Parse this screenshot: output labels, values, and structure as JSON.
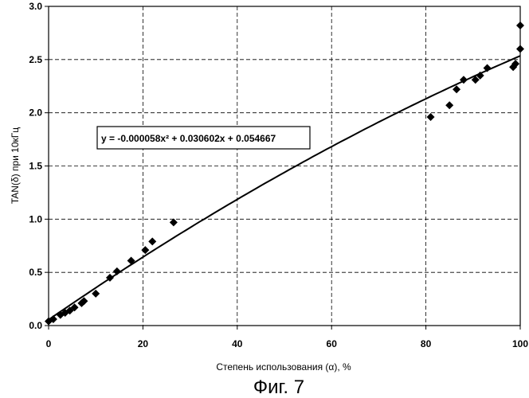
{
  "figure": {
    "caption": "Фиг. 7"
  },
  "chart_data": {
    "type": "scatter",
    "title": "",
    "xlabel": "Степень использования (α), %",
    "ylabel": "TAN(δ) при 10кГц",
    "xlim": [
      0,
      100
    ],
    "ylim": [
      0.0,
      3.0
    ],
    "x_ticks": [
      0,
      20,
      40,
      60,
      80,
      100
    ],
    "y_ticks": [
      0.0,
      0.5,
      1.0,
      1.5,
      2.0,
      2.5,
      3.0
    ],
    "x_tick_labels": [
      "0",
      "20",
      "40",
      "60",
      "80",
      "100"
    ],
    "y_tick_labels": [
      "0.0",
      "0.5",
      "1.0",
      "1.5",
      "2.0",
      "2.5",
      "3.0"
    ],
    "grid": true,
    "grid_style": "dashed",
    "marker": "diamond",
    "points": [
      {
        "x": 0,
        "y": 0.04
      },
      {
        "x": 1,
        "y": 0.06
      },
      {
        "x": 2.5,
        "y": 0.1
      },
      {
        "x": 3.5,
        "y": 0.12
      },
      {
        "x": 4.5,
        "y": 0.14
      },
      {
        "x": 5.5,
        "y": 0.17
      },
      {
        "x": 7,
        "y": 0.21
      },
      {
        "x": 7.5,
        "y": 0.23
      },
      {
        "x": 10,
        "y": 0.3
      },
      {
        "x": 13,
        "y": 0.45
      },
      {
        "x": 14.5,
        "y": 0.51
      },
      {
        "x": 17.5,
        "y": 0.61
      },
      {
        "x": 20.5,
        "y": 0.71
      },
      {
        "x": 22,
        "y": 0.79
      },
      {
        "x": 26.5,
        "y": 0.97
      },
      {
        "x": 81,
        "y": 1.96
      },
      {
        "x": 85,
        "y": 2.07
      },
      {
        "x": 86.5,
        "y": 2.22
      },
      {
        "x": 88,
        "y": 2.31
      },
      {
        "x": 90.5,
        "y": 2.31
      },
      {
        "x": 91.5,
        "y": 2.35
      },
      {
        "x": 93,
        "y": 2.42
      },
      {
        "x": 98.5,
        "y": 2.43
      },
      {
        "x": 99,
        "y": 2.46
      },
      {
        "x": 100,
        "y": 2.6
      },
      {
        "x": 100,
        "y": 2.82
      }
    ],
    "trendline": {
      "type": "polynomial",
      "coefficients": {
        "a": -5.8e-05,
        "b": 0.030602,
        "c": 0.054667
      },
      "x_range": [
        0,
        100
      ],
      "equation_label": "y = -0.000058x² + 0.030602x + 0.054667"
    }
  }
}
